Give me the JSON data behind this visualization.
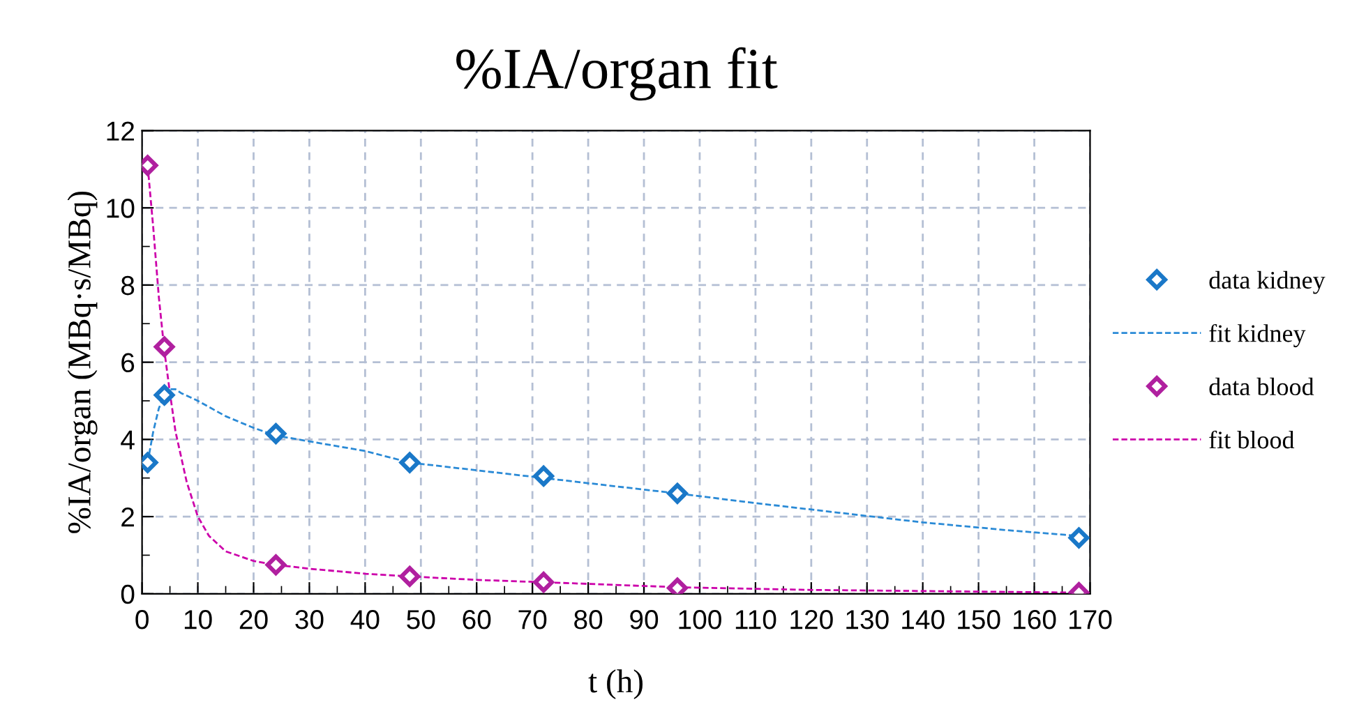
{
  "chart_data": {
    "type": "scatter",
    "title": "%IA/organ fit",
    "xlabel": "t (h)",
    "ylabel": "%IA/organ (MBq·s/MBq)",
    "xlim": [
      0,
      170
    ],
    "xticks": [
      0,
      10,
      20,
      30,
      40,
      50,
      60,
      70,
      80,
      90,
      100,
      110,
      120,
      130,
      140,
      150,
      160,
      170
    ],
    "ylim": [
      0,
      12
    ],
    "yticks": [
      0,
      2,
      4,
      6,
      8,
      10,
      12
    ],
    "grid": true,
    "legend": "right",
    "series": [
      {
        "name": "data kidney",
        "marker": "diamond",
        "color": "#1a78c8",
        "x": [
          1,
          4,
          24,
          48,
          72,
          96,
          168
        ],
        "values": [
          3.4,
          5.15,
          4.15,
          3.4,
          3.05,
          2.6,
          1.45
        ]
      },
      {
        "name": "fit kidney",
        "type": "line",
        "marker": "none",
        "line_style": "dashed",
        "color": "#2a8ad6",
        "x": [
          1,
          2,
          3,
          4,
          5,
          6,
          7,
          10,
          15,
          20,
          24,
          30,
          40,
          48,
          60,
          72,
          84,
          96,
          110,
          125,
          140,
          155,
          168
        ],
        "values": [
          3.4,
          4.2,
          4.8,
          5.15,
          5.3,
          5.3,
          5.2,
          5.0,
          4.6,
          4.3,
          4.1,
          3.95,
          3.7,
          3.4,
          3.2,
          3.0,
          2.8,
          2.6,
          2.35,
          2.1,
          1.85,
          1.65,
          1.5
        ]
      },
      {
        "name": "data blood",
        "marker": "diamond",
        "color": "#b0209f",
        "x": [
          1,
          4,
          24,
          48,
          72,
          96,
          168
        ],
        "values": [
          11.1,
          6.4,
          0.75,
          0.45,
          0.3,
          0.15,
          0.03
        ]
      },
      {
        "name": "fit blood",
        "type": "line",
        "marker": "none",
        "line_style": "dashed",
        "color": "#cc00aa",
        "x": [
          1,
          2,
          3,
          4,
          5,
          6,
          8,
          10,
          12,
          15,
          20,
          24,
          30,
          40,
          48,
          60,
          72,
          96,
          120,
          168
        ],
        "values": [
          11.1,
          9.5,
          7.7,
          6.3,
          5.2,
          4.2,
          2.9,
          2.0,
          1.5,
          1.1,
          0.85,
          0.75,
          0.65,
          0.52,
          0.45,
          0.36,
          0.3,
          0.17,
          0.1,
          0.03
        ]
      }
    ]
  }
}
